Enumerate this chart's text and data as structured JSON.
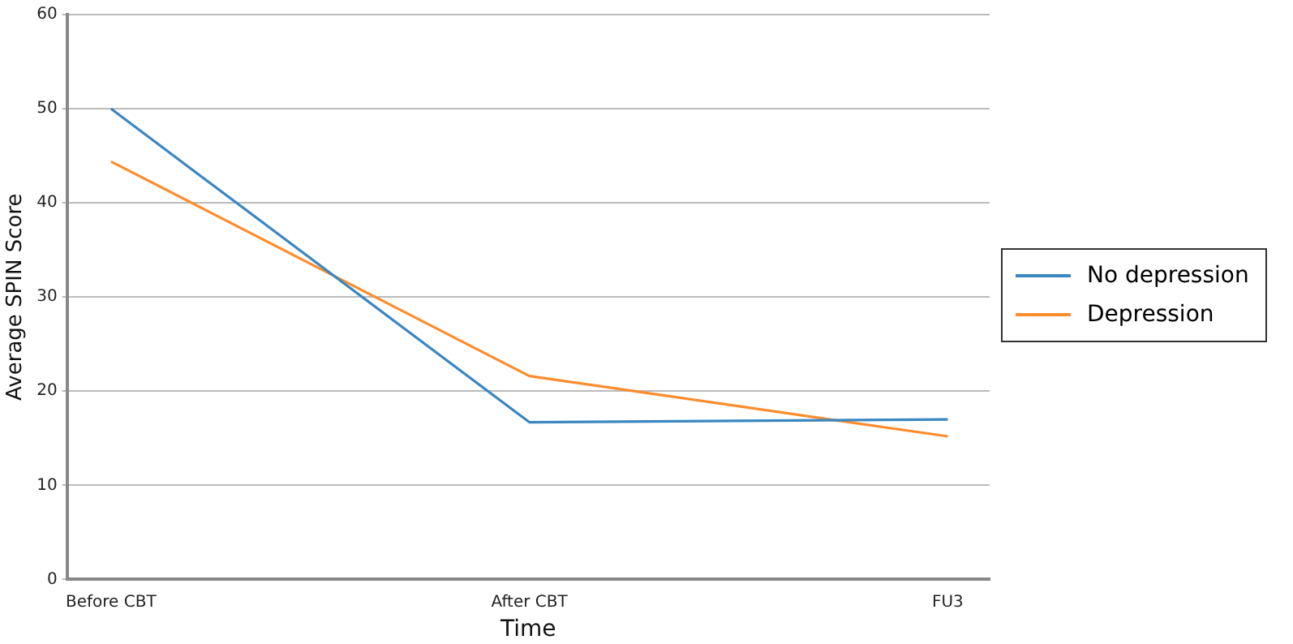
{
  "chart_data": {
    "type": "line",
    "xlabel": "Time",
    "ylabel": "Average SPIN Score",
    "categories": [
      "Before CBT",
      "After CBT",
      "FU3"
    ],
    "series": [
      {
        "name": "No depression",
        "color": "#3a87c1",
        "values": [
          50,
          16.7,
          17.0
        ]
      },
      {
        "name": "Depression",
        "color": "#fd8c2c",
        "values": [
          44.4,
          21.6,
          15.2
        ]
      }
    ],
    "ylim": [
      0,
      60
    ],
    "yticks": [
      0,
      10,
      20,
      30,
      40,
      50,
      60
    ],
    "grid": "y",
    "legend": "right",
    "marker": "none",
    "line_style": "solid"
  }
}
